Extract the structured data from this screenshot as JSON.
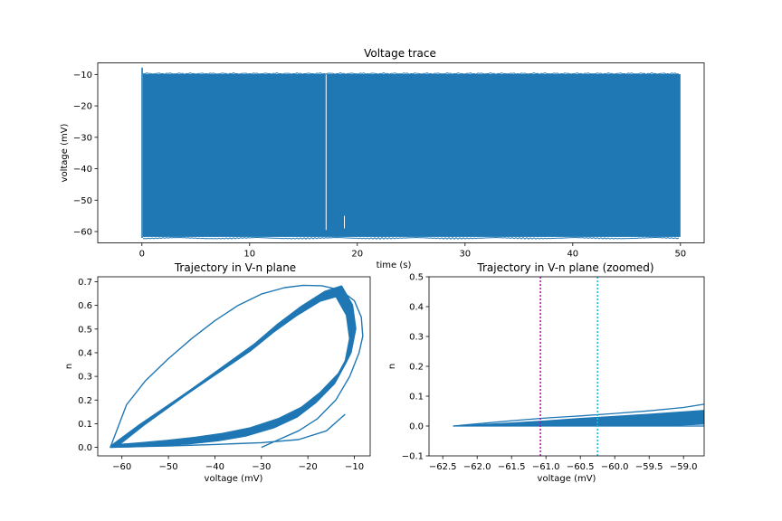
{
  "colors": {
    "series": "#1f77b4",
    "vline_left": "#bf00bf",
    "vline_right": "#17becf",
    "axes": "#000000"
  },
  "chart_data": [
    {
      "type": "line",
      "title": "Voltage trace",
      "xlabel": "time (s)",
      "ylabel": "voltage (mV)",
      "xlim": [
        -4.1,
        52.2
      ],
      "ylim": [
        -63.6,
        -6.3
      ],
      "xticks": [
        0,
        10,
        20,
        30,
        40,
        50
      ],
      "yticks": [
        -60,
        -50,
        -40,
        -30,
        -20,
        -10
      ],
      "series": [
        {
          "band": {
            "x": [
              0.1,
              50.0
            ],
            "y": [
              -61.7,
              -9.9
            ]
          },
          "initial_spike": {
            "x": 0.02,
            "y": [
              -62.0,
              -7.8
            ]
          },
          "gaps": [
            {
              "x": 17.1,
              "y": [
                -59.5,
                -10.0
              ]
            },
            {
              "x": 18.8,
              "y": [
                -59.0,
                -55.0
              ]
            }
          ]
        }
      ],
      "grid": false
    },
    {
      "type": "line",
      "title": "Trajectory in V-n plane",
      "xlabel": "voltage (mV)",
      "ylabel": "n",
      "xlim": [
        -65.2,
        -6.6
      ],
      "ylim": [
        -0.036,
        0.721
      ],
      "xticks": [
        -60,
        -50,
        -40,
        -30,
        -20,
        -10
      ],
      "yticks": [
        0.0,
        0.1,
        0.2,
        0.3,
        0.4,
        0.5,
        0.6,
        0.7
      ],
      "series": [
        {
          "x": [
            -30,
            -26,
            -22,
            -18,
            -14,
            -11,
            -9,
            -8.2,
            -8.5,
            -10,
            -13,
            -17,
            -21,
            -25,
            -30,
            -35,
            -40,
            -45,
            -50,
            -55,
            -59,
            -62.5,
            -57,
            -50,
            -40,
            -30,
            -22,
            -16,
            -12
          ],
          "y": [
            0.0,
            0.035,
            0.07,
            0.12,
            0.2,
            0.3,
            0.4,
            0.47,
            0.55,
            0.62,
            0.665,
            0.683,
            0.685,
            0.675,
            0.648,
            0.6,
            0.535,
            0.46,
            0.375,
            0.28,
            0.18,
            0.0,
            0.003,
            0.006,
            0.012,
            0.02,
            0.033,
            0.07,
            0.14
          ]
        }
      ],
      "grid": false
    },
    {
      "type": "line",
      "title": "Trajectory in V-n plane (zoomed)",
      "xlabel": "voltage (mV)",
      "ylabel": "n",
      "xlim": [
        -62.7,
        -58.7
      ],
      "ylim": [
        -0.1,
        0.5
      ],
      "xticks": [
        -62.5,
        -62.0,
        -61.5,
        -61.0,
        -60.5,
        -60.0,
        -59.5,
        -59.0
      ],
      "yticks": [
        -0.1,
        0.0,
        0.1,
        0.2,
        0.3,
        0.4,
        0.5
      ],
      "vlines": [
        {
          "x": -61.08,
          "style": "dotted",
          "color": "#bf00bf"
        },
        {
          "x": -60.25,
          "style": "dotted",
          "color": "#17becf"
        }
      ],
      "series": [
        {
          "x": [
            -62.35,
            -61.5,
            -61.0,
            -60.5,
            -60.0,
            -59.5,
            -59.0,
            -58.7
          ],
          "upper": [
            0.0,
            0.018,
            0.027,
            0.034,
            0.042,
            0.051,
            0.062,
            0.073
          ],
          "band_top": [
            0.0,
            0.011,
            0.018,
            0.026,
            0.033,
            0.04,
            0.048,
            0.053
          ],
          "band_bottom": [
            0.0,
            0.0,
            0.0,
            0.0,
            0.0,
            0.0,
            0.003,
            0.006
          ]
        }
      ],
      "grid": false
    }
  ]
}
